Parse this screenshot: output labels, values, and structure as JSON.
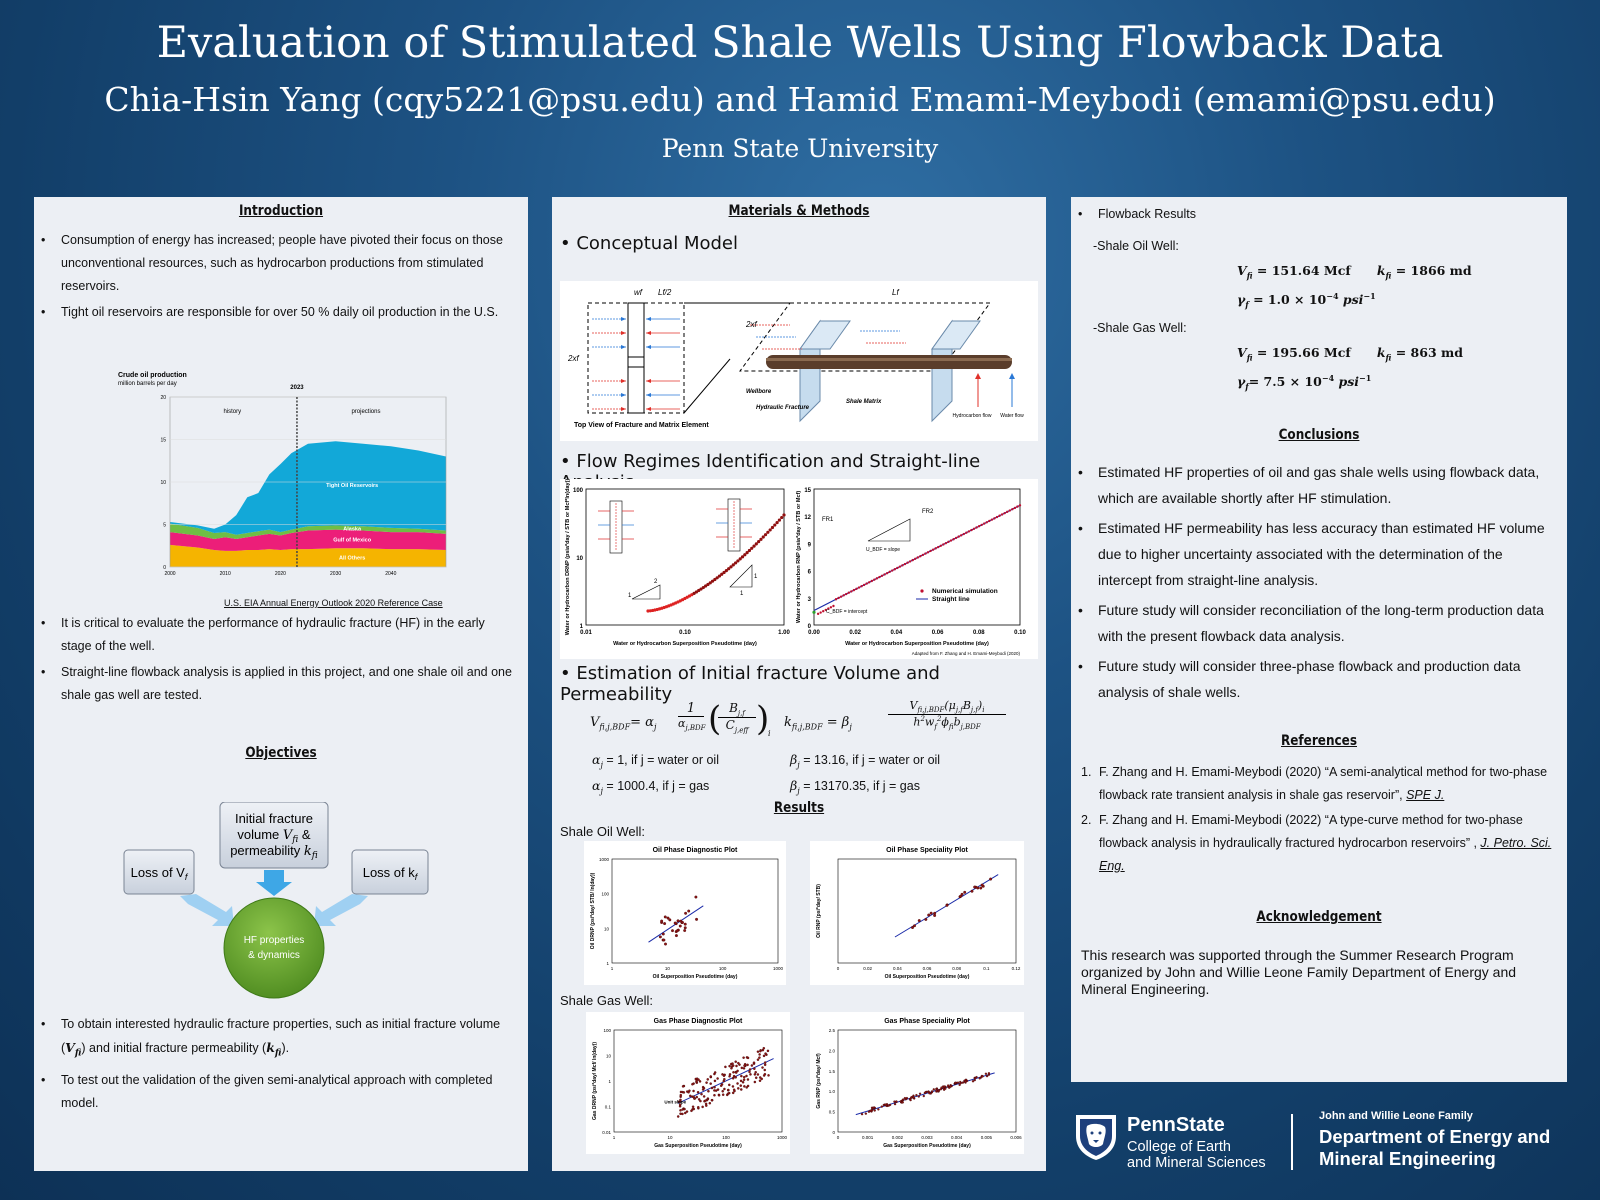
{
  "header": {
    "title": "Evaluation of Stimulated Shale Wells Using Flowback Data",
    "authors": "Chia-Hsin Yang (cqy5221@psu.edu) and Hamid Emami-Meybodi (emami@psu.edu)",
    "university": "Penn State University"
  },
  "intro": {
    "heading": "Introduction",
    "bullets": [
      "Consumption of energy has increased; people have pivoted their focus on those unconventional resources, such as hydrocarbon productions from stimulated reservoirs.",
      "Tight oil reservoirs are responsible for over 50 % daily oil production in the U.S."
    ],
    "chart_caption": "U.S. EIA Annual Energy Outlook 2020 Reference Case",
    "bullets2": [
      "It is critical to evaluate the performance of hydraulic fracture (HF) in the early stage of the well.",
      "Straight-line flowback analysis is applied in this project, and one shale oil and one shale gas well are tested."
    ]
  },
  "chart_data": {
    "type": "area",
    "title": "Crude oil production",
    "subtitle": "million barrels per day",
    "marker_year": "2023",
    "labels": {
      "history": "history",
      "projections": "projections"
    },
    "x": [
      2000,
      2005,
      2008,
      2010,
      2012,
      2014,
      2016,
      2018,
      2020,
      2022,
      2025,
      2030,
      2035,
      2040,
      2045,
      2050
    ],
    "xticks": [
      "2000",
      "2010",
      "2020",
      "2030",
      "2040"
    ],
    "yticks": [
      "0",
      "5",
      "10",
      "15",
      "20"
    ],
    "ylim": [
      0,
      20
    ],
    "series": [
      {
        "name": "All Others",
        "color": "#f5b400",
        "values": [
          2.6,
          2.3,
          2.0,
          1.9,
          1.9,
          2.0,
          2.0,
          2.1,
          2.0,
          2.1,
          2.1,
          2.2,
          2.2,
          2.1,
          2.1,
          2.0
        ]
      },
      {
        "name": "Gulf of Mexico",
        "color": "#ec1e79",
        "values": [
          1.5,
          1.4,
          1.3,
          1.6,
          1.4,
          1.5,
          1.7,
          1.8,
          1.7,
          1.9,
          2.2,
          2.2,
          2.1,
          2.0,
          2.0,
          1.9
        ]
      },
      {
        "name": "Alaska",
        "color": "#6fbe44",
        "values": [
          1.0,
          0.9,
          0.7,
          0.6,
          0.5,
          0.5,
          0.5,
          0.5,
          0.4,
          0.4,
          0.5,
          0.5,
          0.5,
          0.5,
          0.4,
          0.4
        ]
      },
      {
        "name": "Tight Oil Reservoirs",
        "color": "#12a8d8",
        "values": [
          0.2,
          0.3,
          0.5,
          0.9,
          2.3,
          4.2,
          4.5,
          6.5,
          8.0,
          9.0,
          9.7,
          9.9,
          9.7,
          9.6,
          9.2,
          8.7
        ]
      }
    ]
  },
  "objectives": {
    "heading": "Objectives",
    "box_center": "Initial fracture volume V",
    "box_center2": "fi",
    "box_center3": " & permeability k",
    "box_center4": "fi",
    "box_left": "Loss of V",
    "box_left_sub": "f",
    "box_right": "Loss of k",
    "box_right_sub": "f",
    "circle_l1": "HF properties",
    "circle_l2": "& dynamics",
    "bullets": [
      "To obtain interested hydraulic fracture properties, such as initial fracture volume (Vfi) and initial fracture permeability (kfi).",
      "To test out the validation of the given semi-analytical approach with completed model."
    ]
  },
  "methods": {
    "heading": "Materials & Methods",
    "m1": "Conceptual Model",
    "m2": "Flow Regimes Identification and Straight-line Analysis",
    "m3": "Estimation of Initial fracture Volume and Permeability",
    "diagram": {
      "top_view": "Top View of Fracture and Matrix Element",
      "wellbore": "Wellbore",
      "hf": "Hydraulic Fracture",
      "matrix": "Shale Matrix",
      "hc_flow": "Hydrocarbon flow",
      "water_flow": "Water flow",
      "wf": "wf",
      "lf2": "Lf/2",
      "lf": "Lf",
      "twoxf": "2xf",
      "twoxf2": "2xf"
    },
    "sl_left": {
      "ylabel": "Water or Hydrocarbon DRNP (psia*day / STB or Mcf*ln(day))",
      "xlabel": "Water or Hydrocarbon Superposition Pseudotime (day)",
      "yticks": [
        "1",
        "10",
        "100"
      ],
      "xticks": [
        "0.01",
        "0.10",
        "1.00"
      ],
      "s1": "2",
      "s2": "1",
      "s3": "1",
      "s4": "1"
    },
    "sl_right": {
      "ylabel": "Water or Hydrocarbon RNP (psia*day / STB or Mcf)",
      "xlabel": "Water or Hydrocarbon Superposition Pseudotime (day)",
      "yticks": [
        "0",
        "3",
        "6",
        "9",
        "12",
        "15"
      ],
      "xticks": [
        "0.00",
        "0.02",
        "0.04",
        "0.06",
        "0.08",
        "0.10"
      ],
      "fr1": "FR1",
      "fr2": "FR2",
      "slope": "U_BDF = slope",
      "intercept": "C_BDF = intercept",
      "leg1": "Numerical simulation",
      "leg2": "Straight line",
      "adapted": "Adapted from F. Zhang and H. Emami-Meybodi (2020)"
    },
    "alpha1": "= 1, if j = water or oil",
    "alpha2": "= 1000.4, if j = gas",
    "beta1": "= 13.16, if j = water or oil",
    "beta2": "= 13170.35, if j = gas"
  },
  "results": {
    "heading": "Results",
    "oil": "Shale Oil Well:",
    "gas": "Shale Gas Well:",
    "p1": {
      "title": "Oil Phase Diagnostic Plot",
      "xlabel": "Oil Superposition Pseudotime (day)",
      "ylabel": "Oil DRNP (psi*day/ STB/ ln(day))",
      "yticks": [
        "1",
        "10",
        "100",
        "1000"
      ],
      "xticks": [
        "1",
        "10",
        "100",
        "1000"
      ]
    },
    "p2": {
      "title": "Oil Phase Speciality Plot",
      "xlabel": "Oil Superposition Pseudotime (day)",
      "ylabel": "Oil RNP (psi*day/ STB)",
      "yticks": [],
      "xticks": [
        "0",
        "0.02",
        "0.04",
        "0.06",
        "0.08",
        "0.1",
        "0.12"
      ]
    },
    "p3": {
      "title": "Gas Phase Diagnostic Plot",
      "xlabel": "Gas Superposition Pseudotime (day)",
      "ylabel": "Gas DRNP (psi*day/ Mcf/ ln(day))",
      "yticks": [
        "0.01",
        "0.1",
        "1",
        "10",
        "100"
      ],
      "xticks": [
        "1",
        "10",
        "100",
        "1000"
      ],
      "note": "Unit slope"
    },
    "p4": {
      "title": "Gas Phase Speciality Plot",
      "xlabel": "Gas Superposition Pseudotime (day)",
      "ylabel": "Gas RNP (psi*day/ Mcf)",
      "yticks": [
        "0",
        "0.5",
        "1.0",
        "1.5",
        "2.0",
        "2.5"
      ],
      "xticks": [
        "0",
        "0.001",
        "0.002",
        "0.003",
        "0.004",
        "0.005",
        "0.006"
      ]
    }
  },
  "flowback": {
    "title": "Flowback Results",
    "oil": "-Shale Oil Well:",
    "gas": "-Shale Gas Well:",
    "oil_v": "= 151.64 Mcf",
    "oil_k": "= 1866 md",
    "oil_g": "= 1.0 × 10",
    "oil_g_exp": "−4",
    "gas_v": "= 195.66 Mcf",
    "gas_k": "= 863 md",
    "gas_g": "= 7.5 × 10",
    "gas_g_exp": "−4",
    "unit": "psi",
    "unit_exp": "−1"
  },
  "conclusions": {
    "heading": "Conclusions",
    "bullets": [
      "Estimated HF properties of oil and gas shale wells using flowback data, which are available shortly after HF stimulation.",
      "Estimated HF permeability has less accuracy than estimated HF volume due to higher uncertainty associated with the determination of the intercept from straight-line analysis.",
      "Future study will consider reconciliation of the long-term production data with the present flowback data analysis.",
      "Future study will consider three-phase flowback and production data analysis of shale wells."
    ]
  },
  "references": {
    "heading": "References",
    "r1": "F. Zhang and H. Emami-Meybodi (2020) “A semi-analytical method for two-phase flowback rate transient analysis in shale gas reservoir”,",
    "r1j": "SPE J.",
    "r2": "F. Zhang and H. Emami-Meybodi (2022) “A type-curve method for two-phase flowback analysis in hydraulically fractured hydrocarbon reservoirs” ,",
    "r2j": "J. Petro. Sci. Eng."
  },
  "ack": {
    "heading": "Acknowledgement",
    "text": "This research was supported through the Summer Research Program organized by John and Willie Leone Family Department of Energy and Mineral Engineering."
  },
  "logos": {
    "ps": "PennState",
    "college1": "College of Earth",
    "college2": "and Mineral Sciences",
    "dept_small": "John and Willie Leone Family",
    "dept1": "Department of Energy and",
    "dept2": "Mineral Engineering"
  }
}
